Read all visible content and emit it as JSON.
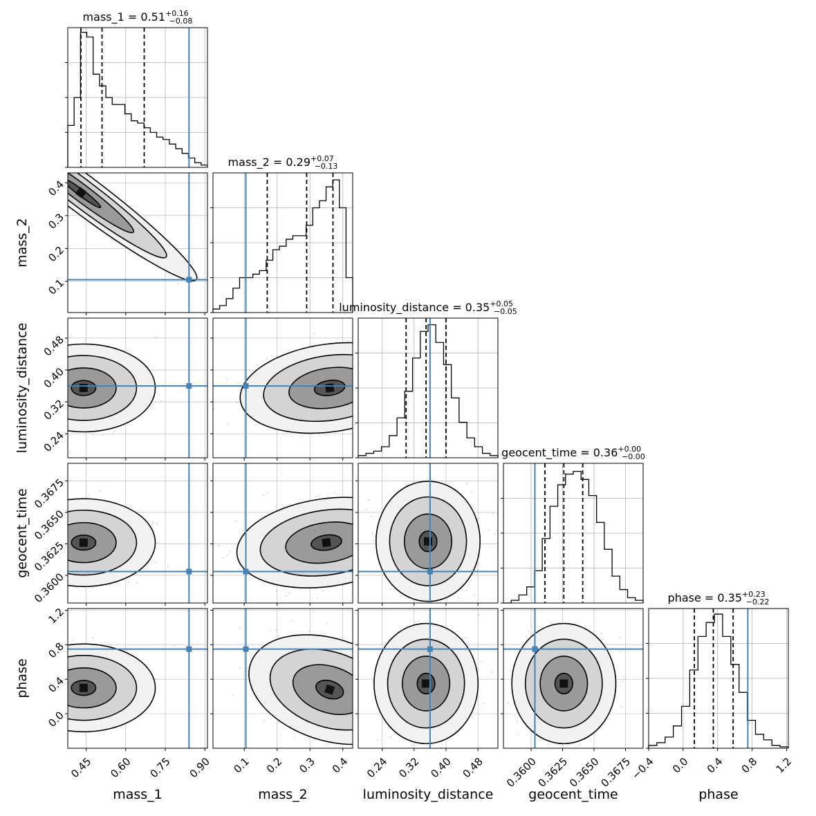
{
  "chart_data": {
    "type": "corner",
    "parameters": [
      {
        "name": "mass_1",
        "range": [
          0.38,
          0.91
        ],
        "ticks": [
          0.45,
          0.6,
          0.75,
          0.9
        ],
        "tick_labels": [
          "0.45",
          "0.60",
          "0.75",
          "0.90"
        ],
        "truth": 0.84,
        "quantiles": [
          0.43,
          0.51,
          0.67
        ],
        "title": {
          "main": "mass_1 = 0.51",
          "plus": "+0.16",
          "minus": "−0.08"
        },
        "hist": [
          18,
          30,
          58,
          56,
          40,
          35,
          30,
          27,
          27,
          23,
          20,
          19,
          17,
          15,
          13,
          12,
          10,
          8,
          6,
          4,
          2,
          1
        ],
        "hist_ymax": 60
      },
      {
        "name": "mass_2",
        "range": [
          0.005,
          0.43
        ],
        "ticks": [
          0.1,
          0.2,
          0.3,
          0.4
        ],
        "tick_labels": [
          "0.1",
          "0.2",
          "0.3",
          "0.4"
        ],
        "truth": 0.105,
        "quantiles": [
          0.17,
          0.29,
          0.37
        ],
        "title": {
          "main": "mass_2 = 0.29",
          "plus": "+0.07",
          "minus": "−0.13"
        },
        "hist": [
          1,
          2,
          4,
          7,
          10,
          10,
          11,
          12,
          15,
          18,
          19,
          21,
          22,
          22,
          25,
          30,
          32,
          36,
          38,
          30,
          10
        ],
        "hist_ymax": 40
      },
      {
        "name": "luminosity_distance",
        "range": [
          0.18,
          0.53
        ],
        "ticks": [
          0.24,
          0.32,
          0.4,
          0.48
        ],
        "tick_labels": [
          "0.24",
          "0.32",
          "0.40",
          "0.48"
        ],
        "truth": 0.36,
        "quantiles": [
          0.3,
          0.35,
          0.4
        ],
        "title": {
          "main": "luminosity_distance = 0.35",
          "plus": "+0.05",
          "minus": "−0.05"
        },
        "hist": [
          1,
          2,
          3,
          5,
          10,
          18,
          30,
          45,
          57,
          60,
          52,
          42,
          27,
          16,
          9,
          5,
          2,
          1
        ],
        "hist_ymax": 63
      },
      {
        "name": "geocent_time",
        "range": [
          0.3578,
          0.3689
        ],
        "ticks": [
          0.36,
          0.3625,
          0.365,
          0.3675
        ],
        "tick_labels": [
          "0.3600",
          "0.3625",
          "0.3650",
          "0.3675"
        ],
        "truth": 0.3603,
        "quantiles": [
          0.3611,
          0.3626,
          0.3641
        ],
        "title": {
          "main": "geocent_time = 0.36",
          "plus": "+0.00",
          "minus": "−0.00"
        },
        "hist": [
          0,
          1,
          3,
          6,
          12,
          24,
          36,
          44,
          48,
          49,
          46,
          40,
          30,
          20,
          10,
          5,
          2,
          1
        ],
        "hist_ymax": 52
      },
      {
        "name": "phase",
        "range": [
          -0.4,
          1.22
        ],
        "ticks": [
          -0.4,
          0.0,
          0.4,
          0.8,
          1.2
        ],
        "tick_labels": [
          "−0.4",
          "0.0",
          "0.4",
          "0.8",
          "1.2"
        ],
        "truth": 0.75,
        "quantiles": [
          0.13,
          0.35,
          0.58
        ],
        "title": {
          "main": "phase = 0.35",
          "plus": "+0.23",
          "minus": "−0.22"
        },
        "hist": [
          1,
          2,
          4,
          8,
          15,
          28,
          40,
          45,
          48,
          40,
          30,
          20,
          10,
          5,
          3,
          1,
          0.5
        ],
        "hist_ymax": 50
      }
    ],
    "offdiag_y": {
      "1": {
        "ticks": [
          0.1,
          0.2,
          0.3,
          0.4
        ],
        "tick_labels": [
          "0.1",
          "0.2",
          "0.3",
          "0.4"
        ]
      },
      "2": {
        "ticks": [
          0.24,
          0.32,
          0.4,
          0.48
        ],
        "tick_labels": [
          "0.24",
          "0.32",
          "0.40",
          "0.48"
        ]
      },
      "3": {
        "ticks": [
          0.36,
          0.3625,
          0.365,
          0.3675
        ],
        "tick_labels": [
          "0.3600",
          "0.3625",
          "0.3650",
          "0.3675"
        ]
      },
      "4": {
        "ticks": [
          0.0,
          0.4,
          0.8,
          1.2
        ],
        "tick_labels": [
          "0.0",
          "0.4",
          "0.8",
          "1.2"
        ]
      }
    },
    "density_centers": {
      "1-0": {
        "cx": 0.43,
        "cy": 0.37,
        "angle": -38,
        "corr": -0.98
      },
      "2-0": {
        "cx": 0.44,
        "cy": 0.355,
        "angle": 0,
        "corr": -0.2
      },
      "2-1": {
        "cx": 0.36,
        "cy": 0.355,
        "angle": 0,
        "corr": 0.2
      },
      "3-0": {
        "cx": 0.44,
        "cy": 0.3626,
        "angle": 0,
        "corr": -0.2
      },
      "3-1": {
        "cx": 0.35,
        "cy": 0.3626,
        "angle": 0,
        "corr": 0.3
      },
      "3-2": {
        "cx": 0.355,
        "cy": 0.3627,
        "angle": 0,
        "corr": 0
      },
      "4-0": {
        "cx": 0.44,
        "cy": 0.3,
        "angle": 0,
        "corr": 0.25
      },
      "4-1": {
        "cx": 0.36,
        "cy": 0.28,
        "angle": 0,
        "corr": -0.3
      },
      "4-2": {
        "cx": 0.35,
        "cy": 0.35,
        "angle": 0,
        "corr": 0
      },
      "4-3": {
        "cx": 0.3626,
        "cy": 0.35,
        "angle": 0,
        "corr": 0
      }
    },
    "colors": {
      "truth": "#4682b4",
      "hist": "#000000",
      "grid": "#b0b0b0"
    },
    "grid": true
  }
}
